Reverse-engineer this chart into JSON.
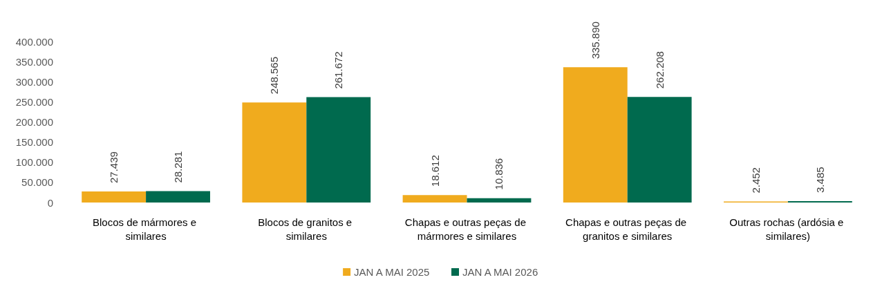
{
  "chart_data": {
    "type": "bar",
    "categories": [
      "Blocos de mármores e similares",
      "Blocos de granitos e similares",
      "Chapas e outras peças de mármores e similares",
      "Chapas e outras peças de granitos e similares",
      "Outras rochas (ardósia e similares)"
    ],
    "series": [
      {
        "name": "JAN A MAI 2025",
        "color": "#f0ab1e",
        "values": [
          27439,
          248565,
          18612,
          335890,
          2452
        ],
        "value_labels": [
          "27.439",
          "248.565",
          "18.612",
          "335.890",
          "2.452"
        ]
      },
      {
        "name": "JAN A MAI 2026",
        "color": "#006a4e",
        "values": [
          28281,
          261672,
          10836,
          262208,
          3485
        ],
        "value_labels": [
          "28.281",
          "261.672",
          "10.836",
          "262.208",
          "3.485"
        ]
      }
    ],
    "ylim": [
      0,
      400000
    ],
    "yticks": [
      {
        "value": 0,
        "label": "0"
      },
      {
        "value": 50000,
        "label": "50.000"
      },
      {
        "value": 100000,
        "label": "100.000"
      },
      {
        "value": 150000,
        "label": "150.000"
      },
      {
        "value": 200000,
        "label": "200.000"
      },
      {
        "value": 250000,
        "label": "250.000"
      },
      {
        "value": 300000,
        "label": "300.000"
      },
      {
        "value": 350000,
        "label": "350.000"
      },
      {
        "value": 400000,
        "label": "400.000"
      }
    ],
    "grid": false,
    "legend": "bottom"
  }
}
